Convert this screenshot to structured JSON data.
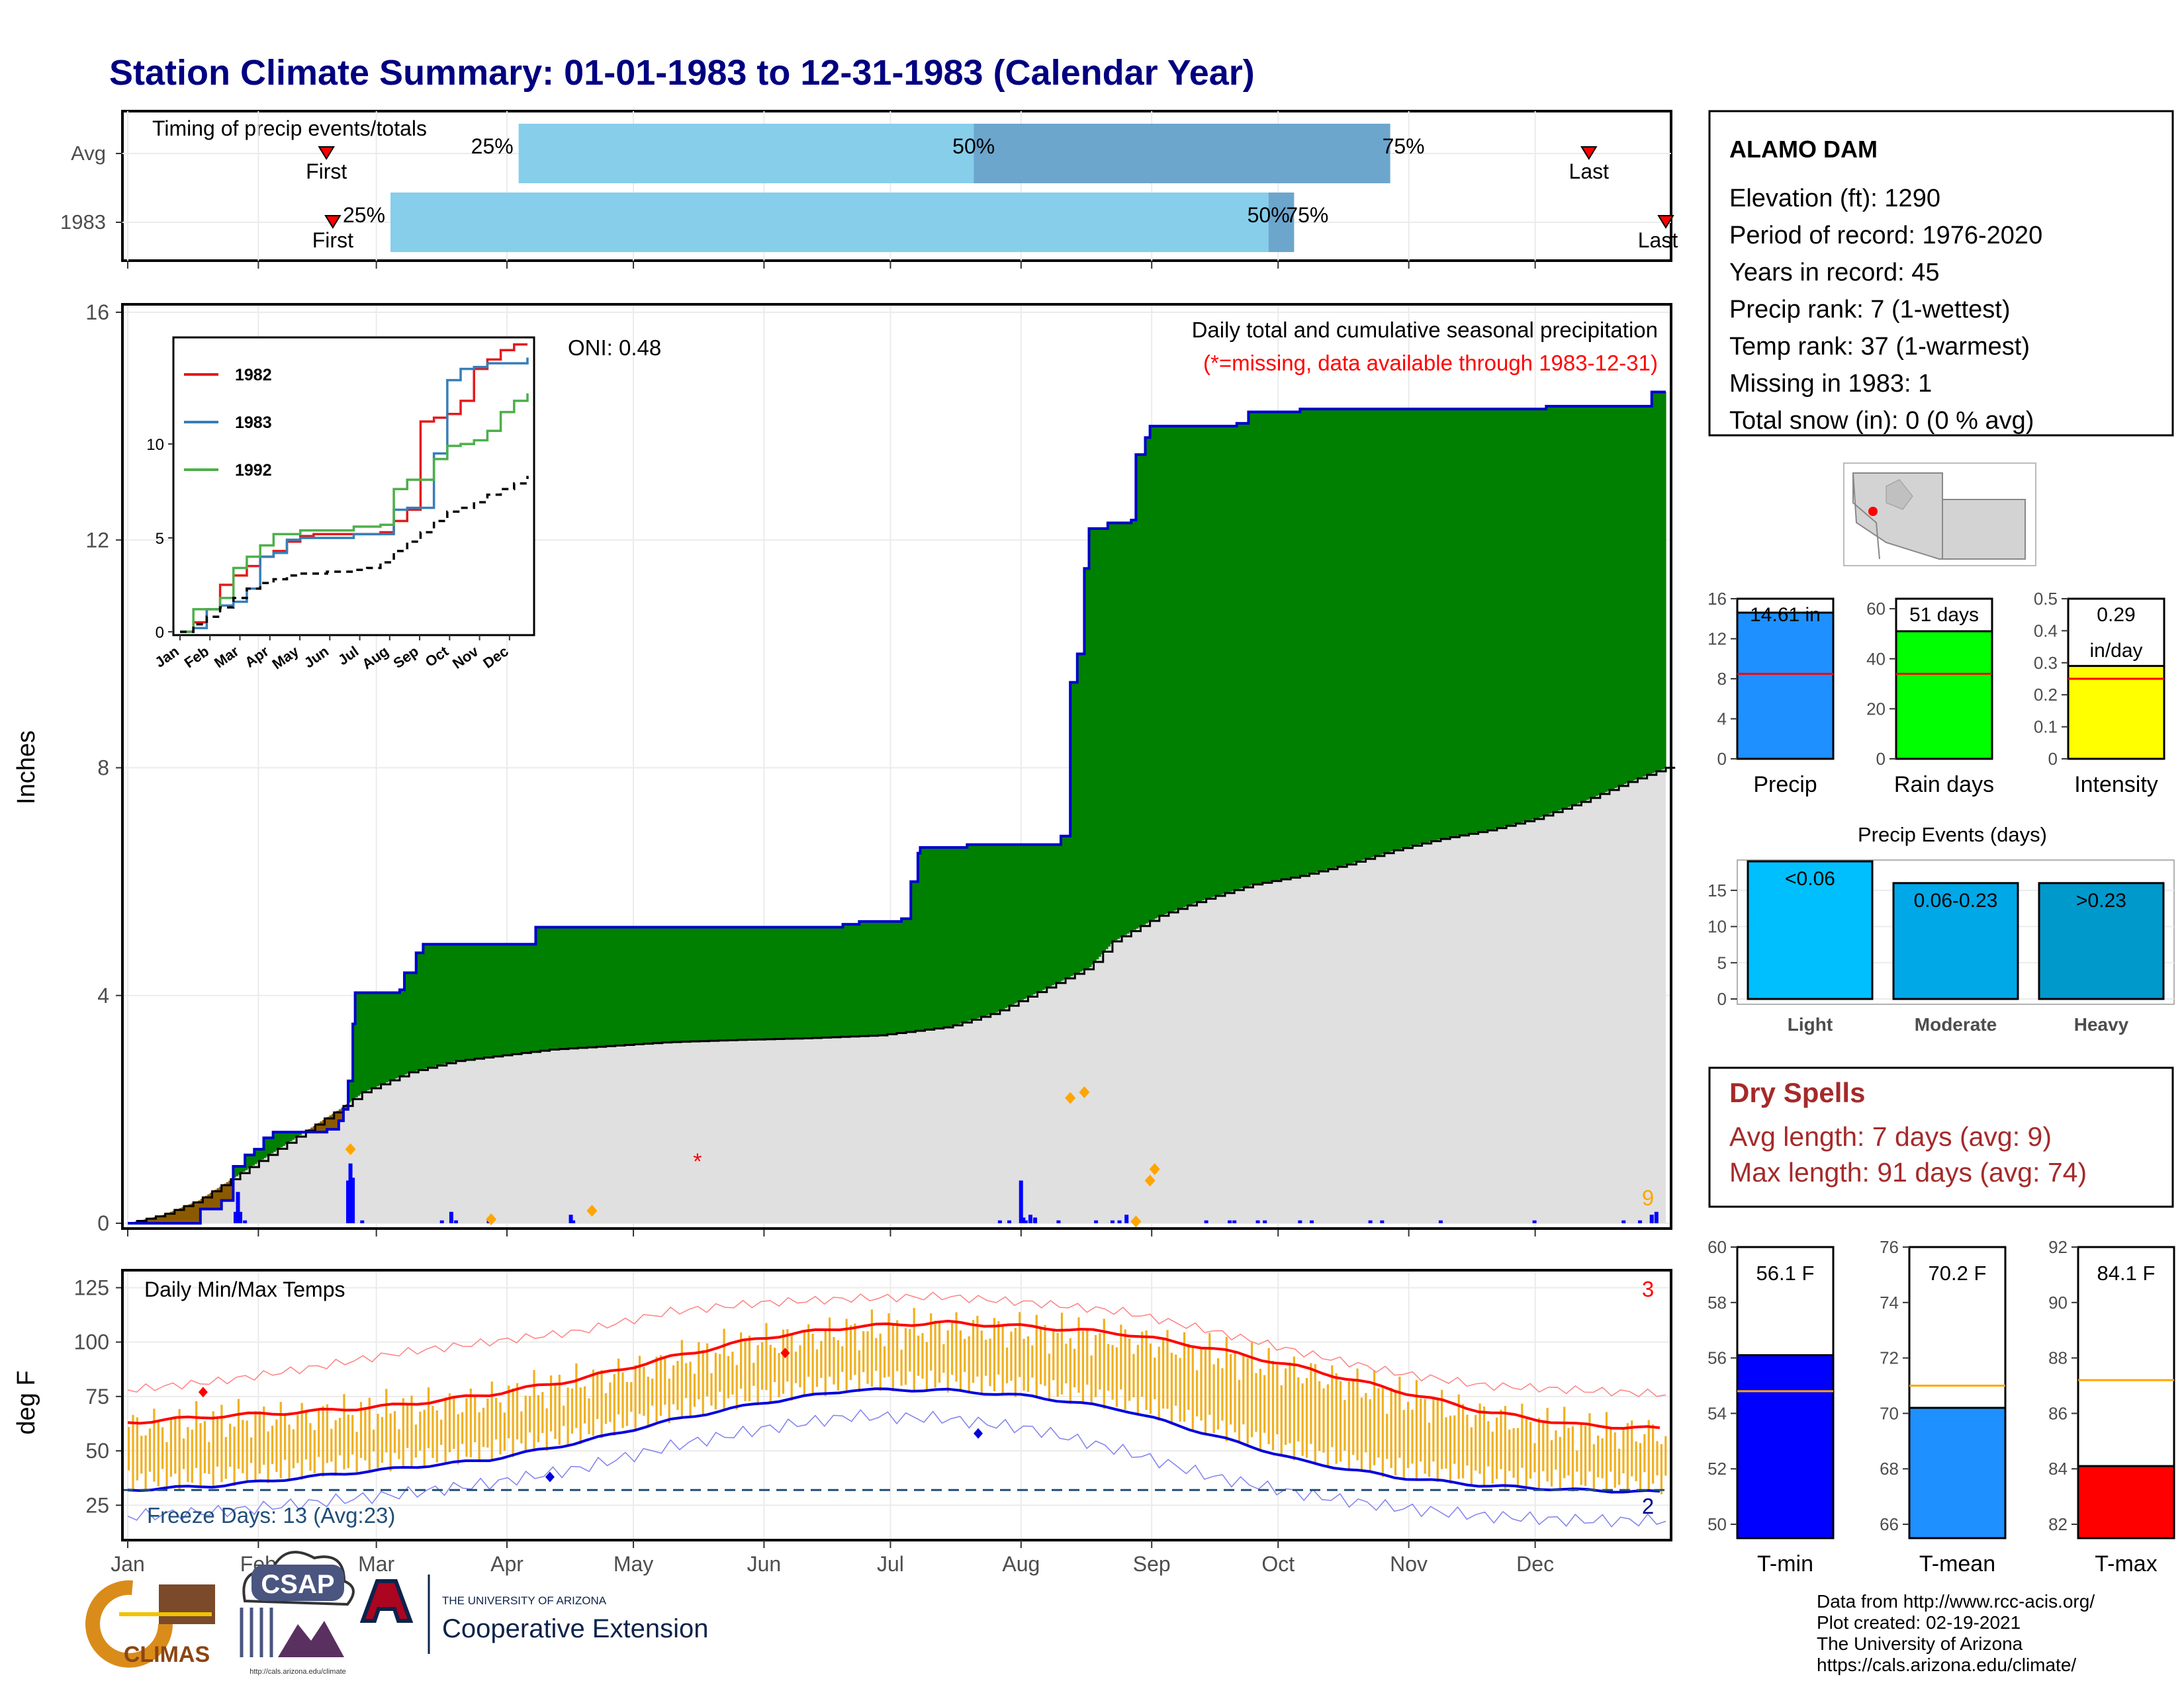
{
  "title": "Station Climate Summary: 01-01-1983 to 12-31-1983 (Calendar Year)",
  "timing": {
    "title": "Timing of precip events/totals",
    "rows": [
      {
        "label": "Avg",
        "first_month": 1.55,
        "last_month": 11.4,
        "p25": 3.05,
        "p50": 6.6,
        "p75": 9.85
      },
      {
        "label": "1983",
        "first_month": 1.6,
        "last_month": 12.0,
        "p25": 2.05,
        "p50": 8.9,
        "p75": 9.1
      }
    ],
    "first_label": "First",
    "last_label": "Last",
    "p25_label": "25%",
    "p50_label": "50%",
    "p75_label": "75%",
    "colors": {
      "light": "#87ceeb",
      "dark": "#6ca6cd",
      "marker": "#ff0000"
    }
  },
  "precip": {
    "ylabel": "Inches",
    "yticks": [
      0,
      4,
      8,
      12,
      16
    ],
    "ylim": [
      0,
      16
    ],
    "oni": "ONI: 0.48",
    "note1": "Daily total and cumulative seasonal precipitation",
    "note2": "(*=missing, data available through 1983-12-31)",
    "missing_marker": "*",
    "missing_day": 243,
    "corner_count": "9",
    "cum_obs": [
      [
        0,
        0
      ],
      [
        31,
        0.25
      ],
      [
        40,
        0.4
      ],
      [
        45,
        1.0
      ],
      [
        50,
        1.2
      ],
      [
        54,
        1.3
      ],
      [
        58,
        1.5
      ],
      [
        62,
        1.6
      ],
      [
        70,
        1.6
      ],
      [
        80,
        1.6
      ],
      [
        85,
        1.65
      ],
      [
        90,
        1.8
      ],
      [
        92,
        2.0
      ],
      [
        94,
        2.5
      ],
      [
        96,
        3.5
      ],
      [
        97,
        4.05
      ],
      [
        112,
        4.05
      ],
      [
        116,
        4.1
      ],
      [
        118,
        4.4
      ],
      [
        123,
        4.75
      ],
      [
        126,
        4.9
      ],
      [
        170,
        4.9
      ],
      [
        174,
        5.2
      ],
      [
        200,
        5.2
      ],
      [
        240,
        5.2
      ],
      [
        305,
        5.25
      ],
      [
        312,
        5.3
      ],
      [
        324,
        5.3
      ],
      [
        330,
        5.35
      ],
      [
        334,
        6.0
      ],
      [
        337,
        6.5
      ],
      [
        338,
        6.6
      ],
      [
        358,
        6.65
      ],
      [
        396,
        6.65
      ],
      [
        398,
        6.8
      ],
      [
        402,
        9.5
      ],
      [
        405,
        10.0
      ],
      [
        408,
        11.5
      ],
      [
        410,
        12.2
      ],
      [
        418,
        12.3
      ],
      [
        428,
        12.35
      ],
      [
        430,
        13.5
      ],
      [
        434,
        13.8
      ],
      [
        436,
        14.0
      ],
      [
        470,
        14.0
      ],
      [
        473,
        14.05
      ],
      [
        478,
        14.25
      ],
      [
        500,
        14.3
      ],
      [
        560,
        14.3
      ],
      [
        605,
        14.35
      ],
      [
        615,
        14.35
      ],
      [
        625,
        14.35
      ],
      [
        650,
        14.6
      ],
      [
        656,
        14.6
      ]
    ],
    "cum_avg": [
      [
        0,
        0
      ],
      [
        15,
        0.15
      ],
      [
        30,
        0.4
      ],
      [
        45,
        0.8
      ],
      [
        60,
        1.2
      ],
      [
        75,
        1.6
      ],
      [
        90,
        2.0
      ],
      [
        100,
        2.3
      ],
      [
        120,
        2.65
      ],
      [
        140,
        2.85
      ],
      [
        160,
        2.95
      ],
      [
        180,
        3.05
      ],
      [
        200,
        3.1
      ],
      [
        230,
        3.18
      ],
      [
        260,
        3.22
      ],
      [
        290,
        3.25
      ],
      [
        320,
        3.3
      ],
      [
        350,
        3.45
      ],
      [
        370,
        3.7
      ],
      [
        390,
        4.1
      ],
      [
        410,
        4.5
      ],
      [
        420,
        4.95
      ],
      [
        440,
        5.4
      ],
      [
        460,
        5.7
      ],
      [
        480,
        5.95
      ],
      [
        500,
        6.1
      ],
      [
        520,
        6.3
      ],
      [
        540,
        6.55
      ],
      [
        560,
        6.75
      ],
      [
        580,
        6.9
      ],
      [
        600,
        7.1
      ],
      [
        620,
        7.4
      ],
      [
        640,
        7.75
      ],
      [
        656,
        8.0
      ]
    ],
    "daily": [
      [
        46,
        0.2
      ],
      [
        47,
        0.55
      ],
      [
        48,
        0.2
      ],
      [
        50,
        0.05
      ],
      [
        94,
        0.75
      ],
      [
        95,
        1.05
      ],
      [
        96,
        0.8
      ],
      [
        100,
        0.05
      ],
      [
        134,
        0.05
      ],
      [
        138,
        0.2
      ],
      [
        140,
        0.05
      ],
      [
        154,
        0.05
      ],
      [
        189,
        0.15
      ],
      [
        190,
        0.05
      ],
      [
        381,
        0.75
      ],
      [
        382,
        0.1
      ],
      [
        385,
        0.15
      ],
      [
        387,
        0.1
      ],
      [
        397,
        0.05
      ],
      [
        460,
        0.05
      ],
      [
        470,
        0.05
      ],
      [
        472,
        0.05
      ],
      [
        482,
        0.05
      ],
      [
        485,
        0.05
      ],
      [
        500,
        0.05
      ],
      [
        505,
        0.05
      ],
      [
        530,
        0.05
      ],
      [
        535,
        0.05
      ],
      [
        560,
        0.05
      ],
      [
        600,
        0.05
      ],
      [
        638,
        0.05
      ],
      [
        645,
        0.05
      ],
      [
        650,
        0.15
      ],
      [
        652,
        0.2
      ],
      [
        372,
        0.05
      ],
      [
        376,
        0.05
      ],
      [
        383,
        0.05
      ],
      [
        413,
        0.05
      ],
      [
        420,
        0.05
      ],
      [
        423,
        0.05
      ],
      [
        426,
        0.15
      ]
    ],
    "events": [
      [
        95,
        1.3
      ],
      [
        96,
        1.05
      ],
      [
        154,
        0.05
      ],
      [
        198,
        0.15
      ],
      [
        439,
        0.05
      ],
      [
        478,
        0.05
      ],
      [
        490,
        0.05
      ]
    ],
    "colors": {
      "above": "#008000",
      "below": "#8b5a00",
      "avg_fill": "#e0e0e0",
      "obs_line": "#0000cd",
      "avg_line": "#000000",
      "bars": "#0000ff",
      "event": "#ffa500"
    }
  },
  "x_axis": {
    "months": [
      "Jan",
      "Feb",
      "Mar",
      "Apr",
      "May",
      "Jun",
      "Jul",
      "Aug",
      "Sep",
      "Oct",
      "Nov",
      "Dec"
    ],
    "days_in_month": [
      31,
      28,
      31,
      30,
      31,
      30,
      31,
      31,
      30,
      31,
      30,
      31
    ]
  },
  "inset": {
    "series": [
      {
        "name": "1982",
        "color": "#e41a1c",
        "values": [
          0,
          0.5,
          1.2,
          2.5,
          3.0,
          3.5,
          4.0,
          4.3,
          4.8,
          5.1,
          5.2,
          5.2,
          5.2,
          5.2,
          5.2,
          5.3,
          5.9,
          6.5,
          11.2,
          11.4,
          11.6,
          12.3,
          14.0,
          14.5,
          15.0,
          15.3,
          15.3
        ]
      },
      {
        "name": "1983",
        "color": "#377eb8",
        "values": [
          0,
          0.2,
          1.2,
          1.4,
          1.6,
          2.3,
          4.0,
          4.2,
          4.9,
          5.0,
          5.0,
          5.0,
          5.0,
          5.2,
          5.2,
          5.2,
          6.5,
          6.6,
          6.6,
          9.5,
          13.4,
          14.0,
          14.1,
          14.3,
          14.3,
          14.3,
          14.6
        ]
      },
      {
        "name": "1992",
        "color": "#4daf4a",
        "values": [
          0,
          1.2,
          1.2,
          1.8,
          3.4,
          4.0,
          4.6,
          5.2,
          5.2,
          5.4,
          5.4,
          5.4,
          5.4,
          5.6,
          5.6,
          5.7,
          7.6,
          8.1,
          8.1,
          9.2,
          9.9,
          10.0,
          10.2,
          10.7,
          11.7,
          12.3,
          12.7
        ]
      },
      {
        "name": "",
        "color": "#000000",
        "dashed": true,
        "values": [
          0,
          0.4,
          0.8,
          1.3,
          1.8,
          2.3,
          2.6,
          2.8,
          3.0,
          3.1,
          3.1,
          3.2,
          3.2,
          3.3,
          3.4,
          3.7,
          4.3,
          4.8,
          5.3,
          5.9,
          6.4,
          6.6,
          6.9,
          7.3,
          7.6,
          7.9,
          8.3
        ]
      }
    ],
    "yticks": [
      0,
      5,
      10
    ],
    "months": [
      "Jan",
      "Feb",
      "Mar",
      "Apr",
      "May",
      "Jun",
      "Jul",
      "Aug",
      "Sep",
      "Oct",
      "Nov",
      "Dec"
    ]
  },
  "temps": {
    "title": "Daily Min/Max Temps",
    "ylabel": "deg F",
    "yticks": [
      25,
      50,
      75,
      100,
      125
    ],
    "freeze": "Freeze Days: 13 (Avg:23)",
    "freeze_line": 32,
    "corner_top": "3",
    "corner_bottom": "2",
    "avg_max": [
      [
        0,
        63
      ],
      [
        30,
        66
      ],
      [
        60,
        68
      ],
      [
        90,
        71
      ],
      [
        120,
        76
      ],
      [
        150,
        83
      ],
      [
        180,
        93
      ],
      [
        210,
        102
      ],
      [
        240,
        107
      ],
      [
        270,
        109
      ],
      [
        300,
        107
      ],
      [
        330,
        104
      ],
      [
        360,
        97
      ],
      [
        390,
        88
      ],
      [
        420,
        78
      ],
      [
        450,
        68
      ],
      [
        480,
        62
      ],
      [
        510,
        60
      ]
    ],
    "avg_min": [
      [
        0,
        32
      ],
      [
        30,
        34
      ],
      [
        60,
        38
      ],
      [
        90,
        42
      ],
      [
        120,
        46
      ],
      [
        150,
        54
      ],
      [
        180,
        64
      ],
      [
        210,
        72
      ],
      [
        240,
        78
      ],
      [
        270,
        78
      ],
      [
        300,
        75
      ],
      [
        330,
        69
      ],
      [
        360,
        57
      ],
      [
        390,
        45
      ],
      [
        420,
        38
      ],
      [
        450,
        34
      ],
      [
        480,
        32
      ],
      [
        510,
        31
      ]
    ],
    "rec_max": [
      [
        0,
        78
      ],
      [
        30,
        82
      ],
      [
        60,
        88
      ],
      [
        90,
        95
      ],
      [
        120,
        100
      ],
      [
        150,
        105
      ],
      [
        180,
        114
      ],
      [
        210,
        118
      ],
      [
        240,
        120
      ],
      [
        270,
        121
      ],
      [
        300,
        118
      ],
      [
        330,
        114
      ],
      [
        360,
        105
      ],
      [
        390,
        95
      ],
      [
        420,
        86
      ],
      [
        450,
        80
      ],
      [
        480,
        78
      ],
      [
        510,
        76
      ]
    ],
    "rec_min": [
      [
        0,
        20
      ],
      [
        30,
        22
      ],
      [
        60,
        26
      ],
      [
        90,
        30
      ],
      [
        120,
        35
      ],
      [
        150,
        42
      ],
      [
        180,
        52
      ],
      [
        210,
        60
      ],
      [
        240,
        66
      ],
      [
        270,
        65
      ],
      [
        300,
        60
      ],
      [
        330,
        50
      ],
      [
        360,
        38
      ],
      [
        390,
        30
      ],
      [
        420,
        24
      ],
      [
        450,
        20
      ],
      [
        480,
        18
      ],
      [
        510,
        18
      ]
    ],
    "colors": {
      "range": "#f0b020",
      "avg_max": "#ff0000",
      "avg_min": "#0000dd",
      "rec_max": "#ff8080",
      "rec_min": "#8080ee",
      "freeze": "#1f4e79"
    }
  },
  "station": {
    "name": "ALAMO DAM",
    "lines": [
      "Elevation (ft): 1290",
      "Period of record: 1976-2020",
      "Years in record: 45",
      "Precip rank: 7 (1-wettest)",
      "Temp rank: 37 (1-warmest)",
      "Missing in 1983: 1",
      "Total snow (in): 0 (0 % avg)"
    ]
  },
  "mini_bars": [
    {
      "label": "Precip",
      "value": 14.61,
      "text": "14.61 in",
      "avg": 8.5,
      "yticks": [
        0,
        4,
        8,
        12,
        16
      ],
      "ymax": 16,
      "color": "#1e90ff"
    },
    {
      "label": "Rain days",
      "value": 51,
      "text": "51 days",
      "avg": 34,
      "yticks": [
        0,
        20,
        40,
        60
      ],
      "ymax": 64,
      "color": "#00ff00"
    },
    {
      "label": "Intensity",
      "value": 0.29,
      "text": "0.29",
      "text2": "in/day",
      "avg": 0.25,
      "yticks": [
        0.0,
        0.1,
        0.2,
        0.3,
        0.4,
        0.5
      ],
      "ymax": 0.5,
      "color": "#ffff00"
    }
  ],
  "events_chart": {
    "title": "Precip Events (days)",
    "yticks": [
      0,
      5,
      10,
      15
    ],
    "ymax": 19,
    "bars": [
      {
        "label": "Light",
        "range": "<0.06",
        "value": 19,
        "color": "#00bfff"
      },
      {
        "label": "Moderate",
        "range": "0.06-0.23",
        "value": 16,
        "color": "#00a8e8"
      },
      {
        "label": "Heavy",
        "range": ">0.23",
        "value": 16,
        "color": "#0099cc"
      }
    ]
  },
  "dry_spells": {
    "title": "Dry Spells",
    "avg": "Avg length: 7 days (avg: 9)",
    "max": "Max length: 91 days (avg: 74)"
  },
  "temp_bars": [
    {
      "label": "T-min",
      "value": 56.1,
      "text": "56.1 F",
      "avg": 54.8,
      "yticks": [
        50,
        52,
        54,
        56,
        58,
        60
      ],
      "ymin": 49.5,
      "ymax": 60,
      "color": "#0000ff"
    },
    {
      "label": "T-mean",
      "value": 70.2,
      "text": "70.2 F",
      "avg": 71.0,
      "yticks": [
        66,
        68,
        70,
        72,
        74,
        76
      ],
      "ymin": 65.5,
      "ymax": 76,
      "color": "#1e90ff"
    },
    {
      "label": "T-max",
      "value": 84.1,
      "text": "84.1 F",
      "avg": 87.2,
      "yticks": [
        82,
        84,
        86,
        88,
        90,
        92
      ],
      "ymin": 81.5,
      "ymax": 92,
      "color": "#ff0000"
    }
  ],
  "footer": {
    "credits": [
      "Data from http://www.rcc-acis.org/",
      "Plot created: 02-19-2021",
      "The University of Arizona",
      "https://cals.arizona.edu/climate/"
    ],
    "climas": "CLIMAS",
    "csap": "CSAP",
    "csap_url": "http://cals.arizona.edu/climate",
    "ua_small": "THE UNIVERSITY OF ARIZONA",
    "ua_big": "Cooperative Extension"
  }
}
